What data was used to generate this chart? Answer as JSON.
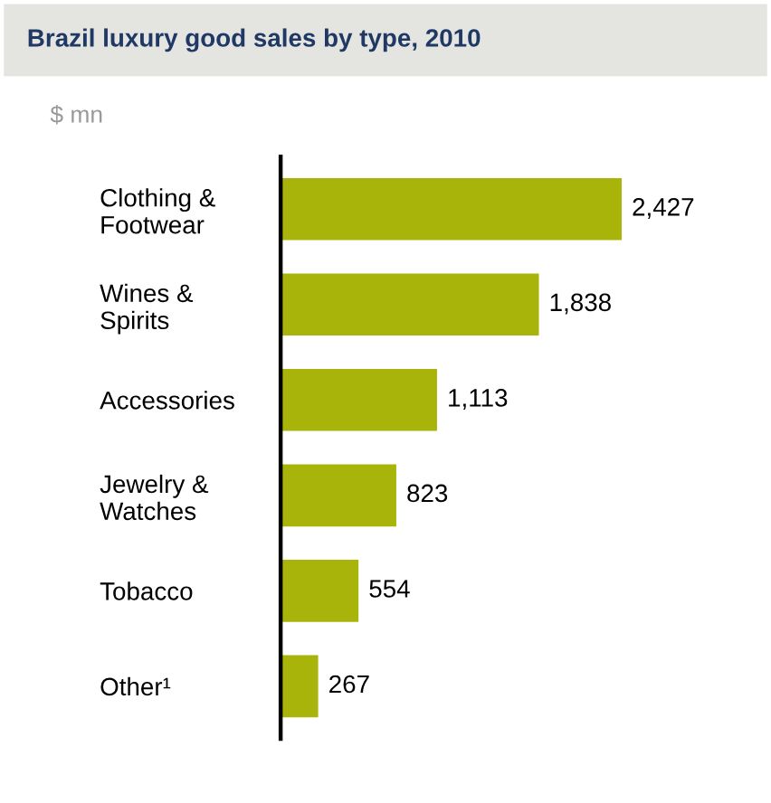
{
  "chart_data": {
    "type": "bar",
    "orientation": "horizontal",
    "title": "Brazil luxury good sales by type, 2010",
    "subtitle": "$ mn",
    "categories": [
      "Clothing &\nFootwear",
      "Wines &\nSpirits",
      "Accessories",
      "Jewelry &\nWatches",
      "Tobacco",
      "Other¹"
    ],
    "values": [
      2427,
      1838,
      1113,
      823,
      554,
      267
    ],
    "color": "#a9b40a",
    "value_labels": [
      "2,427",
      "1,838",
      "1,113",
      "823",
      "554",
      "267"
    ],
    "grid": false,
    "legend": false
  }
}
